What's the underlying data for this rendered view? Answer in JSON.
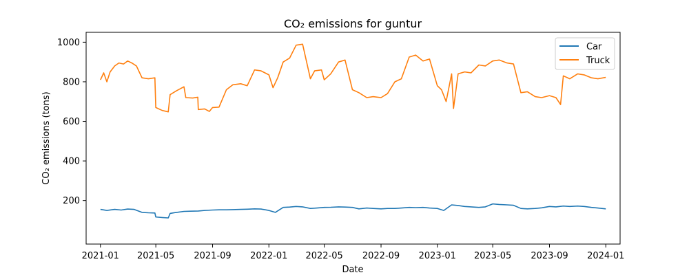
{
  "chart_data": {
    "type": "line",
    "title": "CO₂ emissions for guntur",
    "xlabel": "Date",
    "ylabel": "CO₂ emissions (tons)",
    "x_range": [
      "2020-12-01",
      "2024-02-01"
    ],
    "ylim": [
      -20,
      1050
    ],
    "x_ticks": [
      {
        "date": "2021-01-01",
        "label": "2021-01"
      },
      {
        "date": "2021-05-01",
        "label": "2021-05"
      },
      {
        "date": "2021-09-01",
        "label": "2021-09"
      },
      {
        "date": "2022-01-01",
        "label": "2022-01"
      },
      {
        "date": "2022-05-01",
        "label": "2022-05"
      },
      {
        "date": "2022-09-01",
        "label": "2022-09"
      },
      {
        "date": "2023-01-01",
        "label": "2023-01"
      },
      {
        "date": "2023-05-01",
        "label": "2023-05"
      },
      {
        "date": "2023-09-01",
        "label": "2023-09"
      },
      {
        "date": "2024-01-01",
        "label": "2024-01"
      }
    ],
    "y_ticks": [
      200,
      400,
      600,
      800,
      1000
    ],
    "grid": false,
    "legend_position": "top-right",
    "series": [
      {
        "name": "Car",
        "color": "#1f77b4",
        "points": [
          [
            "2021-01-01",
            155
          ],
          [
            "2021-01-15",
            150
          ],
          [
            "2021-02-01",
            155
          ],
          [
            "2021-02-15",
            152
          ],
          [
            "2021-03-01",
            157
          ],
          [
            "2021-03-15",
            155
          ],
          [
            "2021-04-01",
            140
          ],
          [
            "2021-04-15",
            138
          ],
          [
            "2021-04-29",
            137
          ],
          [
            "2021-05-01",
            117
          ],
          [
            "2021-05-15",
            114
          ],
          [
            "2021-05-28",
            112
          ],
          [
            "2021-06-01",
            135
          ],
          [
            "2021-06-15",
            140
          ],
          [
            "2021-07-01",
            145
          ],
          [
            "2021-07-15",
            146
          ],
          [
            "2021-08-01",
            147
          ],
          [
            "2021-08-15",
            150
          ],
          [
            "2021-09-01",
            152
          ],
          [
            "2021-09-15",
            153
          ],
          [
            "2021-10-01",
            153
          ],
          [
            "2021-10-15",
            154
          ],
          [
            "2021-11-01",
            155
          ],
          [
            "2021-11-15",
            156
          ],
          [
            "2021-12-01",
            158
          ],
          [
            "2021-12-15",
            157
          ],
          [
            "2022-01-01",
            150
          ],
          [
            "2022-01-15",
            140
          ],
          [
            "2022-02-01",
            165
          ],
          [
            "2022-02-15",
            167
          ],
          [
            "2022-03-01",
            170
          ],
          [
            "2022-03-15",
            168
          ],
          [
            "2022-04-01",
            160
          ],
          [
            "2022-04-15",
            162
          ],
          [
            "2022-05-01",
            165
          ],
          [
            "2022-05-15",
            166
          ],
          [
            "2022-06-01",
            168
          ],
          [
            "2022-06-15",
            167
          ],
          [
            "2022-07-01",
            165
          ],
          [
            "2022-07-15",
            158
          ],
          [
            "2022-08-01",
            162
          ],
          [
            "2022-08-15",
            160
          ],
          [
            "2022-09-01",
            158
          ],
          [
            "2022-09-15",
            160
          ],
          [
            "2022-10-01",
            160
          ],
          [
            "2022-10-15",
            162
          ],
          [
            "2022-11-01",
            165
          ],
          [
            "2022-11-15",
            164
          ],
          [
            "2022-12-01",
            165
          ],
          [
            "2022-12-15",
            162
          ],
          [
            "2023-01-01",
            160
          ],
          [
            "2023-01-15",
            150
          ],
          [
            "2023-02-01",
            178
          ],
          [
            "2023-02-15",
            175
          ],
          [
            "2023-03-01",
            170
          ],
          [
            "2023-03-15",
            168
          ],
          [
            "2023-04-01",
            165
          ],
          [
            "2023-04-15",
            168
          ],
          [
            "2023-05-01",
            183
          ],
          [
            "2023-05-15",
            180
          ],
          [
            "2023-06-01",
            178
          ],
          [
            "2023-06-15",
            176
          ],
          [
            "2023-07-01",
            160
          ],
          [
            "2023-07-15",
            158
          ],
          [
            "2023-08-01",
            160
          ],
          [
            "2023-08-15",
            163
          ],
          [
            "2023-09-01",
            170
          ],
          [
            "2023-09-15",
            168
          ],
          [
            "2023-10-01",
            172
          ],
          [
            "2023-10-15",
            170
          ],
          [
            "2023-11-01",
            172
          ],
          [
            "2023-11-15",
            170
          ],
          [
            "2023-12-01",
            165
          ],
          [
            "2023-12-15",
            162
          ],
          [
            "2024-01-01",
            158
          ]
        ]
      },
      {
        "name": "Truck",
        "color": "#ff7f0e",
        "points": [
          [
            "2021-01-01",
            810
          ],
          [
            "2021-01-08",
            845
          ],
          [
            "2021-01-15",
            800
          ],
          [
            "2021-01-22",
            850
          ],
          [
            "2021-02-01",
            880
          ],
          [
            "2021-02-10",
            895
          ],
          [
            "2021-02-20",
            890
          ],
          [
            "2021-03-01",
            905
          ],
          [
            "2021-03-10",
            895
          ],
          [
            "2021-03-20",
            880
          ],
          [
            "2021-04-01",
            820
          ],
          [
            "2021-04-15",
            815
          ],
          [
            "2021-04-29",
            820
          ],
          [
            "2021-05-01",
            670
          ],
          [
            "2021-05-15",
            655
          ],
          [
            "2021-05-28",
            648
          ],
          [
            "2021-06-01",
            735
          ],
          [
            "2021-06-15",
            755
          ],
          [
            "2021-07-01",
            775
          ],
          [
            "2021-07-05",
            720
          ],
          [
            "2021-07-20",
            718
          ],
          [
            "2021-07-31",
            722
          ],
          [
            "2021-08-01",
            660
          ],
          [
            "2021-08-15",
            663
          ],
          [
            "2021-08-25",
            650
          ],
          [
            "2021-09-01",
            670
          ],
          [
            "2021-09-15",
            672
          ],
          [
            "2021-10-01",
            760
          ],
          [
            "2021-10-15",
            785
          ],
          [
            "2021-11-01",
            790
          ],
          [
            "2021-11-15",
            780
          ],
          [
            "2021-12-01",
            860
          ],
          [
            "2021-12-15",
            855
          ],
          [
            "2022-01-01",
            835
          ],
          [
            "2022-01-10",
            770
          ],
          [
            "2022-01-20",
            820
          ],
          [
            "2022-02-01",
            900
          ],
          [
            "2022-02-15",
            920
          ],
          [
            "2022-03-01",
            985
          ],
          [
            "2022-03-15",
            990
          ],
          [
            "2022-04-01",
            815
          ],
          [
            "2022-04-10",
            855
          ],
          [
            "2022-04-25",
            860
          ],
          [
            "2022-05-01",
            810
          ],
          [
            "2022-05-15",
            840
          ],
          [
            "2022-06-01",
            900
          ],
          [
            "2022-06-15",
            910
          ],
          [
            "2022-07-01",
            760
          ],
          [
            "2022-07-15",
            745
          ],
          [
            "2022-08-01",
            720
          ],
          [
            "2022-08-15",
            725
          ],
          [
            "2022-09-01",
            720
          ],
          [
            "2022-09-15",
            740
          ],
          [
            "2022-10-01",
            800
          ],
          [
            "2022-10-15",
            815
          ],
          [
            "2022-11-01",
            925
          ],
          [
            "2022-11-15",
            935
          ],
          [
            "2022-12-01",
            905
          ],
          [
            "2022-12-15",
            915
          ],
          [
            "2023-01-01",
            780
          ],
          [
            "2023-01-10",
            760
          ],
          [
            "2023-01-20",
            700
          ],
          [
            "2023-02-01",
            840
          ],
          [
            "2023-02-05",
            665
          ],
          [
            "2023-02-15",
            840
          ],
          [
            "2023-03-01",
            850
          ],
          [
            "2023-03-15",
            845
          ],
          [
            "2023-04-01",
            885
          ],
          [
            "2023-04-15",
            880
          ],
          [
            "2023-05-01",
            905
          ],
          [
            "2023-05-15",
            910
          ],
          [
            "2023-06-01",
            895
          ],
          [
            "2023-06-15",
            890
          ],
          [
            "2023-07-01",
            745
          ],
          [
            "2023-07-15",
            750
          ],
          [
            "2023-08-01",
            725
          ],
          [
            "2023-08-15",
            720
          ],
          [
            "2023-09-01",
            730
          ],
          [
            "2023-09-15",
            720
          ],
          [
            "2023-09-25",
            685
          ],
          [
            "2023-10-01",
            830
          ],
          [
            "2023-10-15",
            815
          ],
          [
            "2023-11-01",
            840
          ],
          [
            "2023-11-15",
            835
          ],
          [
            "2023-12-01",
            820
          ],
          [
            "2023-12-15",
            815
          ],
          [
            "2024-01-01",
            822
          ]
        ]
      }
    ]
  }
}
